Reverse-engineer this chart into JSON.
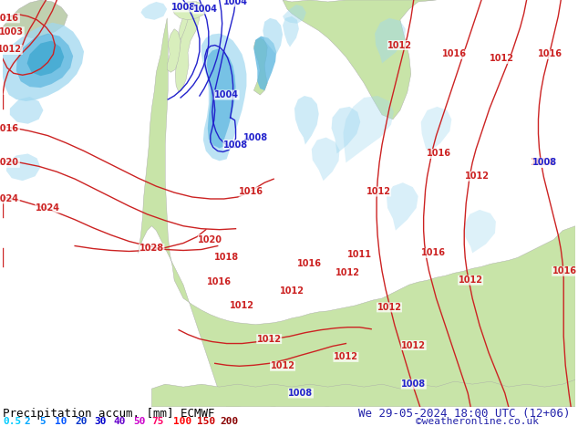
{
  "title_left": "Precipitation accum. [mm] ECMWF",
  "title_right": "We 29-05-2024 18:00 UTC (12+06)",
  "copyright": "©weatheronline.co.uk",
  "legend_values": [
    "0.5",
    "2",
    "5",
    "10",
    "20",
    "30",
    "40",
    "50",
    "75",
    "100",
    "150",
    "200"
  ],
  "legend_colors": [
    "#00ccff",
    "#00aaff",
    "#0088ff",
    "#0055ff",
    "#0033cc",
    "#0000cc",
    "#6600cc",
    "#cc00cc",
    "#ff0066",
    "#ff0000",
    "#cc0000",
    "#880000"
  ],
  "ocean_color": "#e8e8ee",
  "land_color": "#c8e4a8",
  "land_color2": "#d8eebc",
  "precip_light": "#a0d8f0",
  "precip_medium": "#60b8e0",
  "precip_heavy": "#30a0d8",
  "isobar_red": "#cc2222",
  "isobar_blue": "#2222cc",
  "text_color": "#000000",
  "font_size_title": 9,
  "font_size_legend": 8,
  "font_size_copyright": 8,
  "font_size_isobar": 7
}
